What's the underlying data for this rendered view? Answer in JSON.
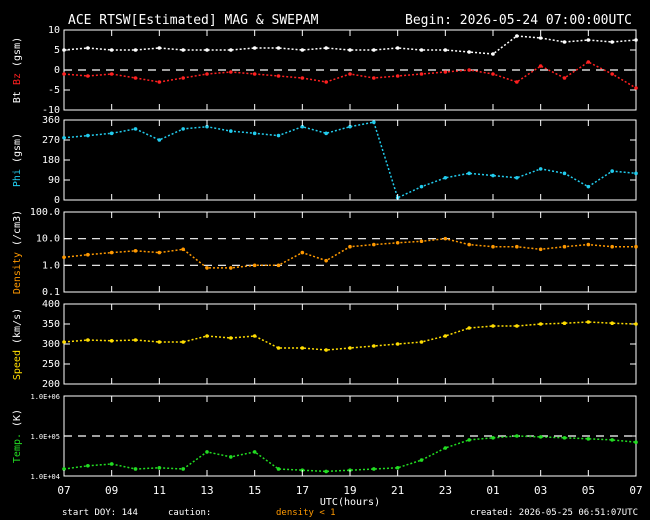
{
  "header": {
    "title": "ACE RTSW[Estimated] MAG & SWEPAM",
    "begin": "Begin: 2026-05-24 07:00:00UTC"
  },
  "footer": {
    "start_doy": "start DOY: 144",
    "caution": "caution:",
    "density_note": "density < 1",
    "created": "created: 2026-05-25 06:51:07UTC"
  },
  "xaxis": {
    "label": "UTC(hours)",
    "ticks": [
      "07",
      "09",
      "11",
      "13",
      "15",
      "17",
      "19",
      "21",
      "23",
      "01",
      "03",
      "05",
      "07"
    ]
  },
  "colors": {
    "bt": "#ffffff",
    "bz": "#ff2020",
    "phi": "#22ccee",
    "density": "#ff9900",
    "speed": "#ffdd00",
    "temp": "#22dd22",
    "axis": "#ffffff",
    "background": "#000000"
  },
  "chart_data": [
    {
      "type": "scatter",
      "panel": "mag_b",
      "ylabel_parts": [
        "Bt",
        "Bz",
        "(gsm)"
      ],
      "ylim": [
        -10,
        10
      ],
      "yticks": [
        "10",
        "5",
        "0",
        "-5",
        "-10"
      ],
      "yticks_values": [
        10,
        5,
        0,
        -5,
        -10
      ],
      "reference_lines": [
        0
      ],
      "series": [
        {
          "name": "Bt",
          "color": "#ffffff",
          "x": [
            0,
            1,
            2,
            3,
            4,
            5,
            6,
            7,
            8,
            9,
            10,
            11,
            12,
            13,
            14,
            15,
            16,
            17,
            18,
            19,
            20,
            21,
            22,
            23,
            24
          ],
          "y": [
            5,
            5.5,
            5,
            5,
            5.5,
            5,
            5,
            5,
            5.5,
            5.5,
            5,
            5.5,
            5,
            5,
            5.5,
            5,
            5,
            4.5,
            4,
            8.5,
            8,
            7,
            7.5,
            7,
            7.5
          ]
        },
        {
          "name": "Bz",
          "color": "#ff2020",
          "x": [
            0,
            1,
            2,
            3,
            4,
            5,
            6,
            7,
            8,
            9,
            10,
            11,
            12,
            13,
            14,
            15,
            16,
            17,
            18,
            19,
            20,
            21,
            22,
            23,
            24
          ],
          "y": [
            -1,
            -1.5,
            -1,
            -2,
            -3,
            -2,
            -1,
            -0.5,
            -1,
            -1.5,
            -2,
            -3,
            -1,
            -2,
            -1.5,
            -1,
            -0.5,
            0,
            -1,
            -3,
            1,
            -2,
            2,
            -1,
            -4.5
          ]
        }
      ]
    },
    {
      "type": "scatter",
      "panel": "mag_phi",
      "ylabel_parts": [
        "Phi",
        "(gsm)"
      ],
      "ylim": [
        0,
        360
      ],
      "yticks": [
        "360",
        "270",
        "180",
        "90",
        "0"
      ],
      "yticks_values": [
        360,
        270,
        180,
        90,
        0
      ],
      "series": [
        {
          "name": "Phi",
          "color": "#22ccee",
          "x": [
            0,
            1,
            2,
            3,
            4,
            5,
            6,
            7,
            8,
            9,
            10,
            11,
            12,
            13,
            14,
            15,
            16,
            17,
            18,
            19,
            20,
            21,
            22,
            23,
            24
          ],
          "y": [
            280,
            290,
            300,
            320,
            270,
            320,
            330,
            310,
            300,
            290,
            330,
            300,
            330,
            350,
            10,
            60,
            100,
            120,
            110,
            100,
            140,
            120,
            60,
            130,
            120
          ]
        }
      ]
    },
    {
      "type": "scatter",
      "panel": "density",
      "ylabel_parts": [
        "Density",
        "(/cm3)"
      ],
      "yscale": "log",
      "ylim": [
        0.1,
        100
      ],
      "yticks": [
        "100.0",
        "10.0",
        "1.0",
        "0.1"
      ],
      "yticks_values": [
        100,
        10,
        1,
        0.1
      ],
      "reference_lines": [
        1,
        10
      ],
      "series": [
        {
          "name": "Density",
          "color": "#ff9900",
          "x": [
            0,
            1,
            2,
            3,
            4,
            5,
            6,
            7,
            8,
            9,
            10,
            11,
            12,
            13,
            14,
            15,
            16,
            17,
            18,
            19,
            20,
            21,
            22,
            23,
            24
          ],
          "y": [
            2,
            2.5,
            3,
            3.5,
            3,
            4,
            0.8,
            0.8,
            1,
            1,
            3,
            1.5,
            5,
            6,
            7,
            8,
            10,
            6,
            5,
            5,
            4,
            5,
            6,
            5,
            5
          ]
        }
      ]
    },
    {
      "type": "scatter",
      "panel": "speed",
      "ylabel_parts": [
        "Speed",
        "(km/s)"
      ],
      "ylim": [
        200,
        400
      ],
      "yticks": [
        "400",
        "350",
        "300",
        "250",
        "200"
      ],
      "yticks_values": [
        400,
        350,
        300,
        250,
        200
      ],
      "series": [
        {
          "name": "Speed",
          "color": "#ffdd00",
          "x": [
            0,
            1,
            2,
            3,
            4,
            5,
            6,
            7,
            8,
            9,
            10,
            11,
            12,
            13,
            14,
            15,
            16,
            17,
            18,
            19,
            20,
            21,
            22,
            23,
            24
          ],
          "y": [
            305,
            310,
            308,
            310,
            305,
            305,
            320,
            315,
            320,
            290,
            290,
            285,
            290,
            295,
            300,
            305,
            320,
            340,
            345,
            345,
            350,
            352,
            355,
            352,
            350
          ]
        }
      ]
    },
    {
      "type": "scatter",
      "panel": "temp",
      "ylabel_parts": [
        "Temp.",
        "(K)"
      ],
      "yscale": "log",
      "ylim": [
        10000,
        1000000
      ],
      "yticks": [
        "1.0E+06",
        "1.0E+05",
        "1.0E+04"
      ],
      "yticks_values": [
        1000000,
        100000,
        10000
      ],
      "reference_lines": [
        100000
      ],
      "series": [
        {
          "name": "Temp.",
          "color": "#22dd22",
          "x": [
            0,
            1,
            2,
            3,
            4,
            5,
            6,
            7,
            8,
            9,
            10,
            11,
            12,
            13,
            14,
            15,
            16,
            17,
            18,
            19,
            20,
            21,
            22,
            23,
            24
          ],
          "y": [
            15000,
            18000,
            20000,
            15000,
            16000,
            15000,
            40000,
            30000,
            40000,
            15000,
            14000,
            13000,
            14000,
            15000,
            16000,
            25000,
            50000,
            80000,
            90000,
            100000,
            95000,
            90000,
            85000,
            80000,
            70000
          ]
        }
      ]
    }
  ]
}
